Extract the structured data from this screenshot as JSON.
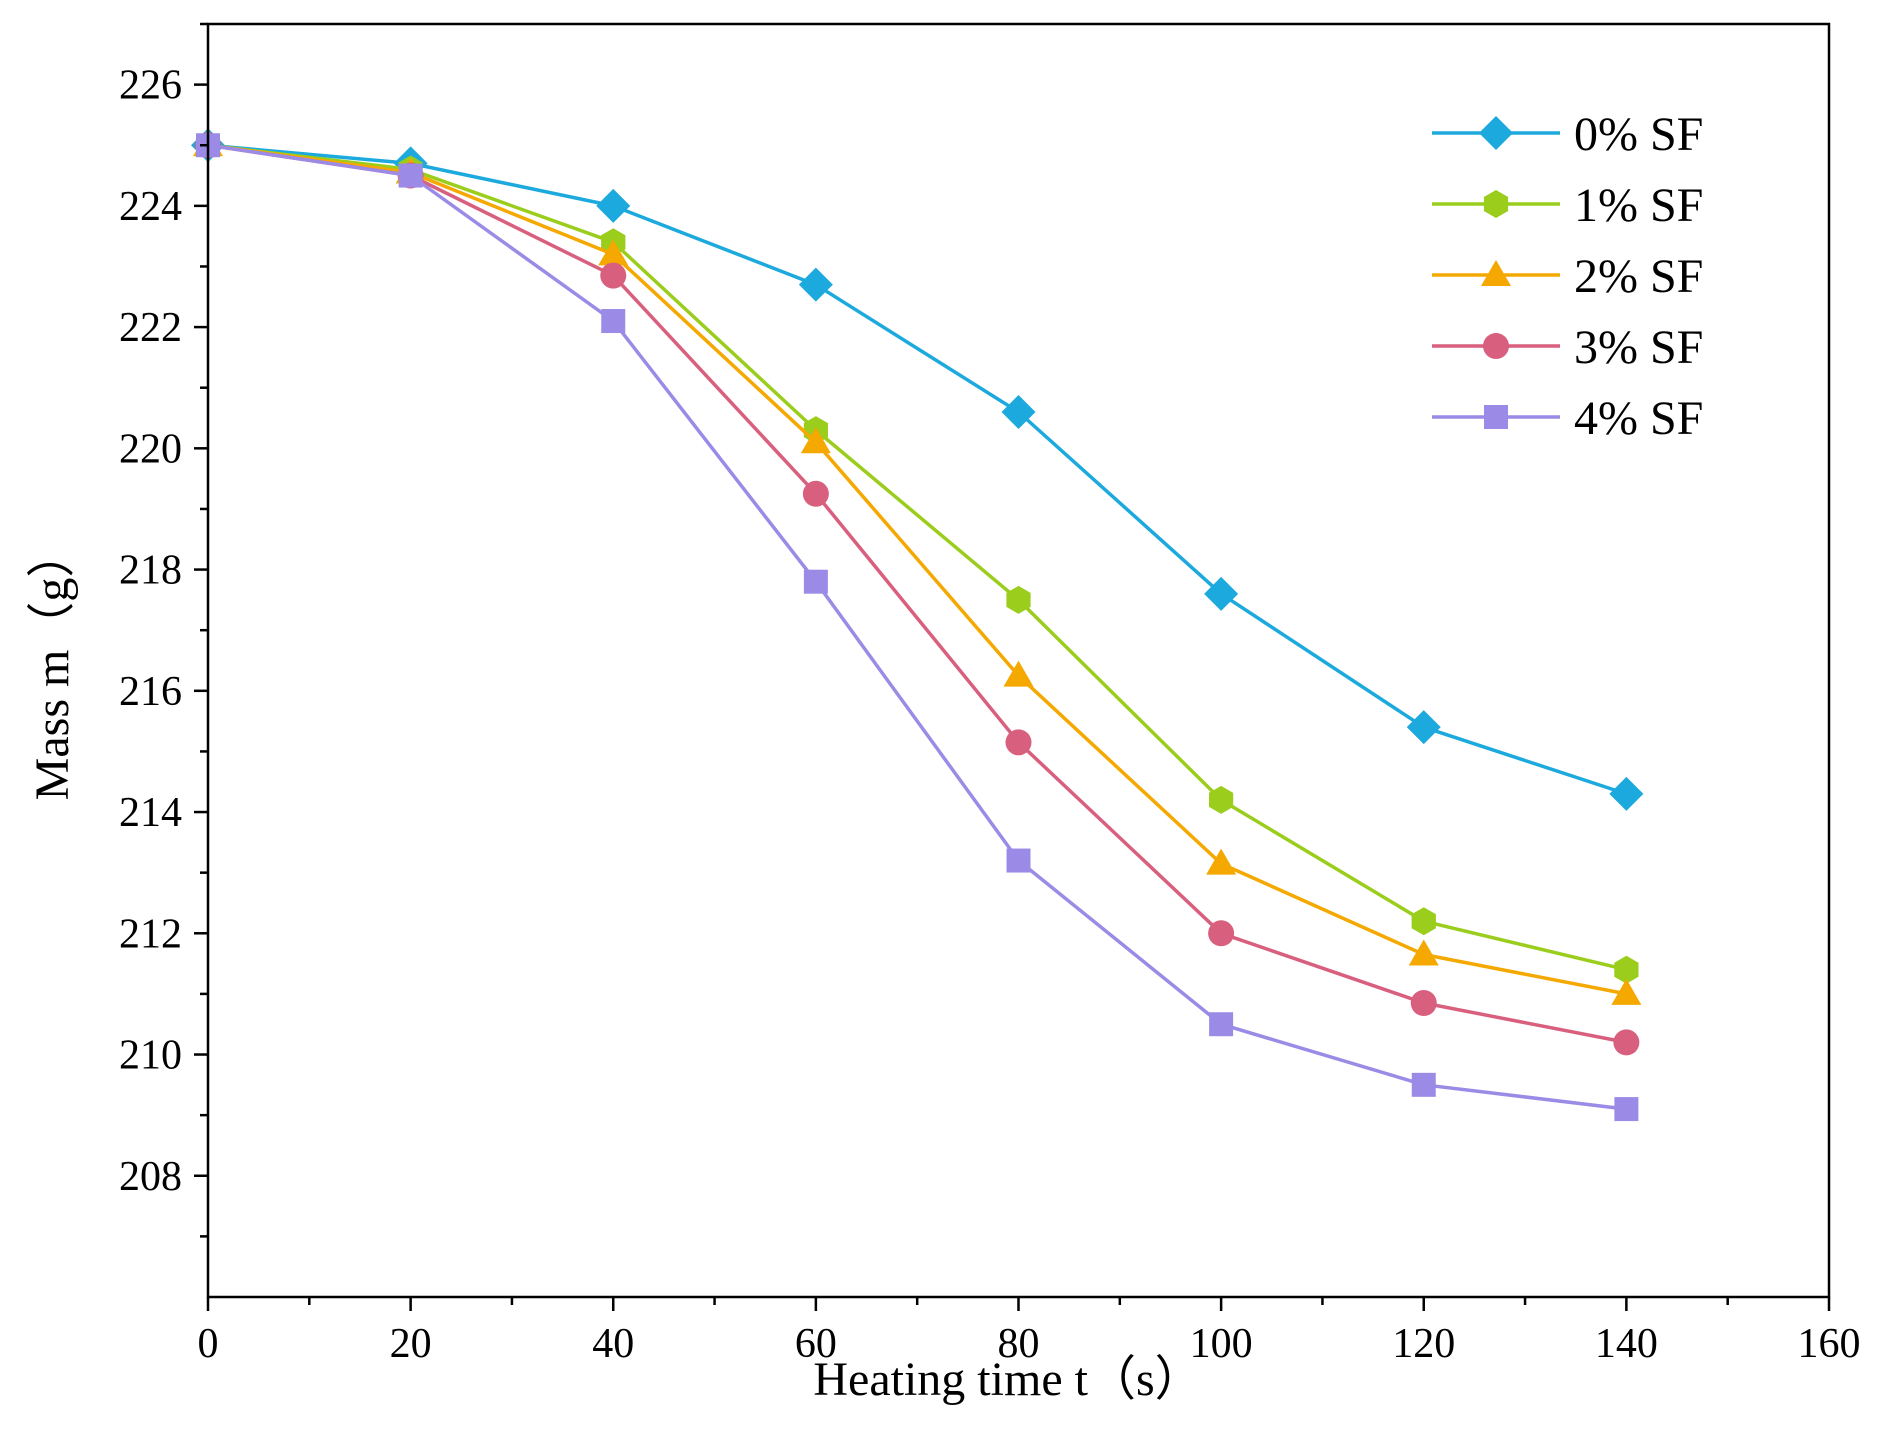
{
  "chart_data": {
    "type": "line",
    "title": "",
    "xlabel": "Heating time t（s）",
    "ylabel": "Mass m（g）",
    "xlim": [
      0,
      160
    ],
    "ylim": [
      206,
      227
    ],
    "xticks": [
      0,
      20,
      40,
      60,
      80,
      100,
      120,
      140,
      160
    ],
    "yticks": [
      208,
      210,
      212,
      214,
      216,
      218,
      220,
      222,
      224,
      226
    ],
    "grid": false,
    "legend_position": "top-right",
    "x": [
      0,
      20,
      40,
      60,
      80,
      100,
      120,
      140
    ],
    "series": [
      {
        "name": "0% SF",
        "color": "#1ca9dd",
        "marker": "diamond",
        "values": [
          225.0,
          224.7,
          224.0,
          222.7,
          220.6,
          217.6,
          215.4,
          214.3
        ]
      },
      {
        "name": "1% SF",
        "color": "#9acd1c",
        "marker": "hexagon",
        "values": [
          225.0,
          224.6,
          223.4,
          220.3,
          217.5,
          214.2,
          212.2,
          211.4
        ]
      },
      {
        "name": "2% SF",
        "color": "#f5a800",
        "marker": "triangle",
        "values": [
          225.0,
          224.55,
          223.2,
          220.1,
          216.25,
          213.15,
          211.65,
          211.0
        ]
      },
      {
        "name": "3% SF",
        "color": "#d95f7e",
        "marker": "circle",
        "values": [
          225.0,
          224.5,
          222.85,
          219.25,
          215.15,
          212.0,
          210.85,
          210.2
        ]
      },
      {
        "name": "4% SF",
        "color": "#9b8be6",
        "marker": "square",
        "values": [
          225.0,
          224.5,
          222.1,
          217.8,
          213.2,
          210.5,
          209.5,
          209.1
        ]
      }
    ]
  }
}
